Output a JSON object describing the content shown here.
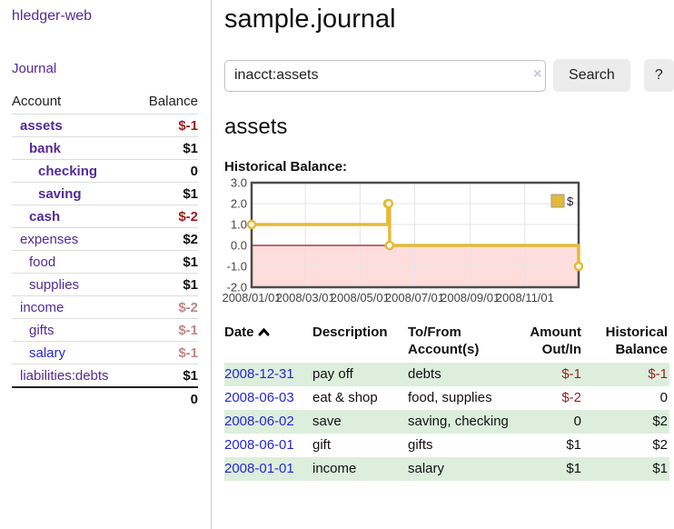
{
  "window": {
    "app_title": "hledger-web"
  },
  "colors": {
    "accent_purple": "#542a9a",
    "link_blue": "#2626d8",
    "negative_strong": "#9e1c1c",
    "negative_soft": "#c28585",
    "stripe_green": "#ddeedd",
    "chart_gold": "#e4ba37",
    "chart_negative_fill": "#ffdddd",
    "chart_zero_line": "#8e1b1b"
  },
  "sidebar": {
    "journal_link": "Journal",
    "accounts_table": {
      "headers": {
        "account": "Account",
        "balance": "Balance"
      },
      "rows": [
        {
          "name": "assets",
          "depth": 1,
          "bold": true,
          "balance": "$-1",
          "balance_tone": "negative-strong",
          "link_tone": "purple"
        },
        {
          "name": "bank",
          "depth": 2,
          "bold": true,
          "balance": "$1",
          "balance_tone": "normal",
          "link_tone": "purple"
        },
        {
          "name": "checking",
          "depth": 3,
          "bold": true,
          "balance": "0",
          "balance_tone": "normal",
          "link_tone": "purple"
        },
        {
          "name": "saving",
          "depth": 3,
          "bold": true,
          "balance": "$1",
          "balance_tone": "normal",
          "link_tone": "purple"
        },
        {
          "name": "cash",
          "depth": 2,
          "bold": true,
          "balance": "$-2",
          "balance_tone": "negative-strong",
          "link_tone": "purple"
        },
        {
          "name": "expenses",
          "depth": 1,
          "bold": false,
          "balance": "$2",
          "balance_tone": "normal",
          "link_tone": "purple"
        },
        {
          "name": "food",
          "depth": 2,
          "bold": false,
          "balance": "$1",
          "balance_tone": "normal",
          "link_tone": "purple"
        },
        {
          "name": "supplies",
          "depth": 2,
          "bold": false,
          "balance": "$1",
          "balance_tone": "normal",
          "link_tone": "purple"
        },
        {
          "name": "income",
          "depth": 1,
          "bold": false,
          "balance": "$-2",
          "balance_tone": "negative-soft",
          "link_tone": "purple"
        },
        {
          "name": "gifts",
          "depth": 2,
          "bold": false,
          "balance": "$-1",
          "balance_tone": "negative-soft",
          "link_tone": "purple"
        },
        {
          "name": "salary",
          "depth": 2,
          "bold": false,
          "balance": "$-1",
          "balance_tone": "negative-soft",
          "link_tone": "blue"
        },
        {
          "name": "liabilities:debts",
          "depth": 1,
          "bold": false,
          "balance": "$1",
          "balance_tone": "normal",
          "link_tone": "purple"
        }
      ],
      "total": "0"
    }
  },
  "main": {
    "title": "sample.journal",
    "search": {
      "value": "inacct:assets",
      "clear_icon": "×",
      "search_button": "Search",
      "help_button": "?"
    },
    "account_heading": "assets",
    "chart_label": "Historical Balance:"
  },
  "chart_data": {
    "type": "line",
    "step": true,
    "title": "Historical Balance",
    "legend_position": "top-right",
    "ylim": [
      -2,
      3
    ],
    "xlim": [
      "2008-01-01",
      "2008-12-31"
    ],
    "y_ticks": [
      {
        "value": 3,
        "label": "3.0"
      },
      {
        "value": 2,
        "label": "2.0"
      },
      {
        "value": 1,
        "label": "1.0"
      },
      {
        "value": 0,
        "label": "0.0"
      },
      {
        "value": -1,
        "label": "-1.0"
      },
      {
        "value": -2,
        "label": "-2.0"
      }
    ],
    "x_ticks": [
      {
        "date": "2008-01-01",
        "label": "2008/01/01"
      },
      {
        "date": "2008-03-01",
        "label": "2008/03/01"
      },
      {
        "date": "2008-05-01",
        "label": "2008/05/01"
      },
      {
        "date": "2008-07-01",
        "label": "2008/07/01"
      },
      {
        "date": "2008-09-01",
        "label": "2008/09/01"
      },
      {
        "date": "2008-11-01",
        "label": "2008/11/01"
      }
    ],
    "series": [
      {
        "name": "$",
        "points": [
          {
            "x": "2008-01-01",
            "y": 1
          },
          {
            "x": "2008-06-01",
            "y": 2
          },
          {
            "x": "2008-06-02",
            "y": 2
          },
          {
            "x": "2008-06-03",
            "y": 0
          },
          {
            "x": "2008-12-31",
            "y": -1
          }
        ]
      }
    ],
    "grid": true,
    "negative_region_shaded": true
  },
  "register_table": {
    "headers": {
      "date": "Date",
      "description": "Description",
      "tofrom_line1": "To/From",
      "tofrom_line2": "Account(s)",
      "amount_line1": "Amount",
      "amount_line2": "Out/In",
      "hist_line1": "Historical",
      "hist_line2": "Balance"
    },
    "rows": [
      {
        "date": "2008-12-31",
        "description": "pay off",
        "accounts": "debts",
        "amount": "$-1",
        "amount_tone": "negative-strong",
        "balance": "$-1",
        "balance_tone": "negative-strong",
        "stripe": true
      },
      {
        "date": "2008-06-03",
        "description": "eat & shop",
        "accounts": "food, supplies",
        "amount": "$-2",
        "amount_tone": "negative-strong",
        "balance": "0",
        "balance_tone": "normal",
        "stripe": false
      },
      {
        "date": "2008-06-02",
        "description": "save",
        "accounts": "saving, checking",
        "amount": "0",
        "amount_tone": "normal",
        "balance": "$2",
        "balance_tone": "normal",
        "stripe": true
      },
      {
        "date": "2008-06-01",
        "description": "gift",
        "accounts": "gifts",
        "amount": "$1",
        "amount_tone": "normal",
        "balance": "$2",
        "balance_tone": "normal",
        "stripe": false
      },
      {
        "date": "2008-01-01",
        "description": "income",
        "accounts": "salary",
        "amount": "$1",
        "amount_tone": "normal",
        "balance": "$1",
        "balance_tone": "normal",
        "stripe": true
      }
    ]
  }
}
